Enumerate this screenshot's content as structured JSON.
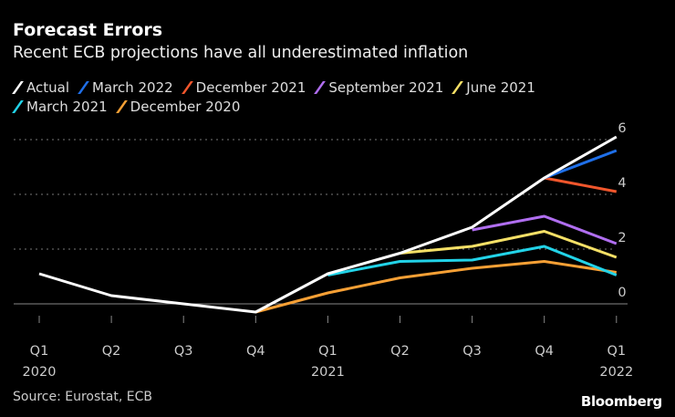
{
  "chart_data": {
    "type": "line",
    "title": "Forecast Errors",
    "subtitle": "Recent ECB projections have all underestimated inflation",
    "categories": [
      "Q1",
      "Q2",
      "Q3",
      "Q4",
      "Q1",
      "Q2",
      "Q3",
      "Q4",
      "Q1"
    ],
    "year_labels": [
      "2020",
      "",
      "",
      "",
      "2021",
      "",
      "",
      "",
      "2022"
    ],
    "ylim": [
      -0.5,
      6.3
    ],
    "yticks": [
      0,
      2,
      4,
      6
    ],
    "grid": true,
    "legend_position": "top-left",
    "series": [
      {
        "name": "Actual",
        "color": "#ffffff",
        "values": [
          1.1,
          0.3,
          0.0,
          -0.3,
          1.1,
          1.85,
          2.8,
          4.6,
          6.1
        ]
      },
      {
        "name": "March 2022",
        "color": "#1f6fe8",
        "values": [
          null,
          null,
          null,
          null,
          null,
          null,
          null,
          4.6,
          5.6
        ]
      },
      {
        "name": "December 2021",
        "color": "#f0562c",
        "values": [
          null,
          null,
          null,
          null,
          null,
          null,
          null,
          4.6,
          4.1
        ]
      },
      {
        "name": "September 2021",
        "color": "#b06ef0",
        "values": [
          null,
          null,
          null,
          null,
          null,
          null,
          2.7,
          3.2,
          2.2
        ]
      },
      {
        "name": "June 2021",
        "color": "#f5e066",
        "values": [
          null,
          null,
          null,
          null,
          null,
          1.85,
          2.1,
          2.65,
          1.7
        ]
      },
      {
        "name": "March 2021",
        "color": "#22d3e8",
        "values": [
          null,
          null,
          null,
          null,
          1.05,
          1.55,
          1.6,
          2.1,
          1.05
        ]
      },
      {
        "name": "December 2020",
        "color": "#f7a035",
        "values": [
          null,
          null,
          null,
          -0.3,
          0.4,
          0.95,
          1.3,
          1.55,
          1.15
        ]
      }
    ],
    "source": "Source: Eurostat, ECB"
  },
  "brand": "Bloomberg"
}
